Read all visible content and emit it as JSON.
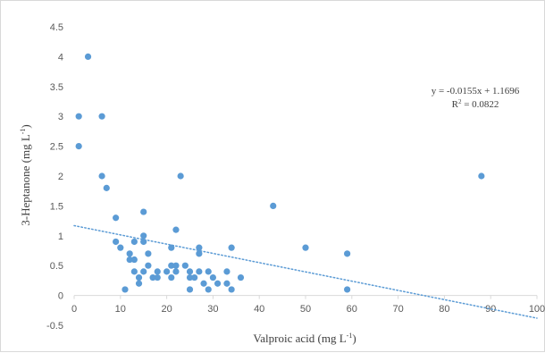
{
  "chart_data": {
    "type": "scatter",
    "xlabel": "Valproic acid (mg L",
    "xlabel_sup": "-1",
    "xlabel_end": ")",
    "ylabel": "3-Heptanone (mg L",
    "ylabel_sup": "-1",
    "ylabel_end": ")",
    "xlim": [
      0,
      100
    ],
    "ylim": [
      -0.5,
      4.5
    ],
    "x_ticks": [
      0,
      10,
      20,
      30,
      40,
      50,
      60,
      70,
      80,
      90,
      100
    ],
    "x_tick_labels": [
      "0",
      "10",
      "20",
      "30",
      "40",
      "50",
      "60",
      "70",
      "80",
      "90",
      "100"
    ],
    "y_ticks": [
      -0.5,
      0,
      0.5,
      1,
      1.5,
      2,
      2.5,
      3,
      3.5,
      4,
      4.5
    ],
    "y_tick_labels": [
      "-0.5",
      "0",
      "0.5",
      "1",
      "1.5",
      "2",
      "2.5",
      "3",
      "3.5",
      "4",
      "4.5"
    ],
    "grid": false,
    "legend": "none",
    "marker_color": "#5b9bd5",
    "trendline_color": "#5b9bd5",
    "series": [
      {
        "points": [
          [
            1,
            3.0
          ],
          [
            1,
            2.5
          ],
          [
            3,
            4.0
          ],
          [
            6,
            3.0
          ],
          [
            6,
            2.0
          ],
          [
            7,
            1.8
          ],
          [
            9,
            1.3
          ],
          [
            9,
            0.9
          ],
          [
            10,
            0.8
          ],
          [
            11,
            0.1
          ],
          [
            12,
            0.7
          ],
          [
            12,
            0.6
          ],
          [
            13,
            0.6
          ],
          [
            13,
            0.9
          ],
          [
            13,
            0.4
          ],
          [
            14,
            0.3
          ],
          [
            14,
            0.2
          ],
          [
            15,
            1.4
          ],
          [
            15,
            1.0
          ],
          [
            15,
            0.9
          ],
          [
            15,
            0.4
          ],
          [
            16,
            0.7
          ],
          [
            16,
            0.5
          ],
          [
            17,
            0.3
          ],
          [
            18,
            0.4
          ],
          [
            18,
            0.3
          ],
          [
            20,
            0.4
          ],
          [
            21,
            0.8
          ],
          [
            21,
            0.5
          ],
          [
            21,
            0.3
          ],
          [
            22,
            1.1
          ],
          [
            22,
            0.5
          ],
          [
            22,
            0.4
          ],
          [
            23,
            2.0
          ],
          [
            24,
            0.5
          ],
          [
            25,
            0.4
          ],
          [
            25,
            0.3
          ],
          [
            25,
            0.1
          ],
          [
            26,
            0.3
          ],
          [
            27,
            0.8
          ],
          [
            27,
            0.7
          ],
          [
            27,
            0.4
          ],
          [
            28,
            0.2
          ],
          [
            29,
            0.4
          ],
          [
            29,
            0.1
          ],
          [
            30,
            0.3
          ],
          [
            31,
            0.2
          ],
          [
            33,
            0.4
          ],
          [
            33,
            0.2
          ],
          [
            34,
            0.8
          ],
          [
            34,
            0.1
          ],
          [
            36,
            0.3
          ],
          [
            43,
            1.5
          ],
          [
            50,
            0.8
          ],
          [
            59,
            0.7
          ],
          [
            59,
            0.1
          ],
          [
            88,
            2.0
          ]
        ]
      }
    ],
    "trendline": {
      "slope": -0.0155,
      "intercept": 1.1696,
      "x_range": [
        0,
        100
      ],
      "style": "dotted"
    },
    "annotations": {
      "equation": "y = -0.0155x + 1.1696",
      "r_squared_prefix": "R",
      "r_squared_sup": "2",
      "r_squared_value": " = 0.0822"
    }
  }
}
